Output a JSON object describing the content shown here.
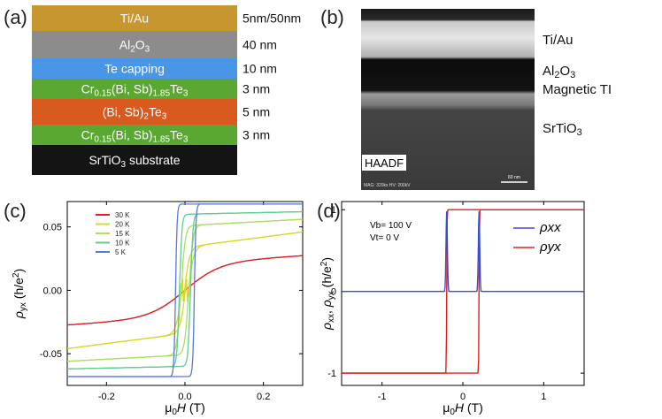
{
  "panel_labels": [
    "(a)",
    "(b)",
    "(c)",
    "(d)"
  ],
  "stack": {
    "layers": [
      {
        "name_parts": [
          [
            "Ti/Au",
            ""
          ]
        ],
        "thickness": "5nm/50nm",
        "color": "#c8962e",
        "text_color": "#ffffff"
      },
      {
        "name_parts": [
          [
            "Al",
            ""
          ],
          [
            "2",
            "sub"
          ],
          [
            "O",
            ""
          ],
          [
            "3",
            "sub"
          ]
        ],
        "thickness": "40 nm",
        "color": "#8c8c8c",
        "text_color": "#ffffff"
      },
      {
        "name_parts": [
          [
            "Te capping",
            ""
          ]
        ],
        "thickness": "10 nm",
        "color": "#4a96e6",
        "text_color": "#ffffff"
      },
      {
        "name_parts": [
          [
            "Cr",
            ""
          ],
          [
            "0.15",
            "sub"
          ],
          [
            "(Bi, Sb)",
            ""
          ],
          [
            "1.85",
            "sub"
          ],
          [
            "Te",
            ""
          ],
          [
            "3",
            "sub"
          ]
        ],
        "thickness": "3 nm",
        "color": "#5aa832",
        "text_color": "#ffffff"
      },
      {
        "name_parts": [
          [
            "(Bi, Sb)",
            ""
          ],
          [
            "2",
            "sub"
          ],
          [
            "Te",
            ""
          ],
          [
            "3",
            "sub"
          ]
        ],
        "thickness": "5 nm",
        "color": "#d85a1e",
        "text_color": "#ffffff"
      },
      {
        "name_parts": [
          [
            "Cr",
            ""
          ],
          [
            "0.15",
            "sub"
          ],
          [
            "(Bi, Sb)",
            ""
          ],
          [
            "1.85",
            "sub"
          ],
          [
            "Te",
            ""
          ],
          [
            "3",
            "sub"
          ]
        ],
        "thickness": "3 nm",
        "color": "#5aa832",
        "text_color": "#ffffff"
      },
      {
        "name_parts": [
          [
            "SrTiO",
            ""
          ],
          [
            "3",
            "sub"
          ],
          [
            " substrate",
            ""
          ]
        ],
        "thickness": "",
        "color": "#141414",
        "text_color": "#ffffff"
      }
    ]
  },
  "tem": {
    "labels": [
      {
        "parts": [
          [
            "Ti/Au",
            ""
          ]
        ]
      },
      {
        "parts": [
          [
            "Al",
            ""
          ],
          [
            "2",
            "sub"
          ],
          [
            "O",
            ""
          ],
          [
            "3",
            "sub"
          ]
        ]
      },
      {
        "parts": [
          [
            "Magnetic TI",
            ""
          ]
        ]
      },
      {
        "parts": [
          [
            "SrTiO",
            ""
          ],
          [
            "3",
            "sub"
          ]
        ]
      }
    ],
    "haadf_label": "HAADF",
    "mag_text": "MAG: 320kx  HV: 200kV",
    "scale_bar_label": "60 nm"
  },
  "chart_data": [
    {
      "type": "line",
      "panel": "(c)",
      "xlabel": "μ0H (T)",
      "ylabel": "ρyx (h/e²)",
      "xlim": [
        -0.3,
        0.3
      ],
      "ylim": [
        -0.075,
        0.07
      ],
      "x_ticks": [
        -0.2,
        0.0,
        0.2
      ],
      "x_tick_labels": [
        "-0.2",
        "0.0",
        "0.2"
      ],
      "y_ticks": [
        -0.05,
        0.0,
        0.05
      ],
      "y_tick_labels": [
        "-0.05",
        "0.00",
        "0.05"
      ],
      "legend": [
        "30 K",
        "20 K",
        "15 K",
        "10 K",
        "5 K"
      ],
      "series": [
        {
          "name": "30 K",
          "color": "#e02020",
          "sat": 0.0225,
          "coercive": 0.0,
          "width": 0.09,
          "slope": 0.0
        },
        {
          "name": "20 K",
          "color": "#d8d828",
          "sat": 0.046,
          "coercive": 0.005,
          "width": 0.015,
          "slope": 0.012
        },
        {
          "name": "15 K",
          "color": "#a8e060",
          "sat": 0.056,
          "coercive": 0.01,
          "width": 0.01,
          "slope": 0.005
        },
        {
          "name": "10 K",
          "color": "#60cc90",
          "sat": 0.062,
          "coercive": 0.014,
          "width": 0.006,
          "slope": 0.002
        },
        {
          "name": "5 K",
          "color": "#5a78d8",
          "sat": 0.068,
          "coercive": 0.024,
          "width": 0.004,
          "slope": 0.0
        }
      ]
    },
    {
      "type": "line",
      "panel": "(d)",
      "xlabel": "μ0H (T)",
      "ylabel": "ρxx, ρyx (h/e²)",
      "xlim": [
        -1.5,
        1.5
      ],
      "ylim": [
        -1.15,
        1.1
      ],
      "x_ticks": [
        -1,
        0,
        1
      ],
      "x_tick_labels": [
        "-1",
        "0",
        "1"
      ],
      "y_ticks": [
        -1,
        0,
        1
      ],
      "y_tick_labels": [
        "-1",
        "0",
        "1"
      ],
      "annotation": [
        "Vb= 100 V",
        "Vt= 0 V"
      ],
      "legend": [
        "ρxx",
        "ρyx"
      ],
      "series": [
        {
          "name": "ρxx",
          "color": "#3a4fd0",
          "base": 0.0,
          "peak": 0.98,
          "peak_at": 0.2
        },
        {
          "name": "ρyx",
          "color": "#e02020",
          "sat": 1.0,
          "coercive": 0.2
        }
      ]
    }
  ]
}
